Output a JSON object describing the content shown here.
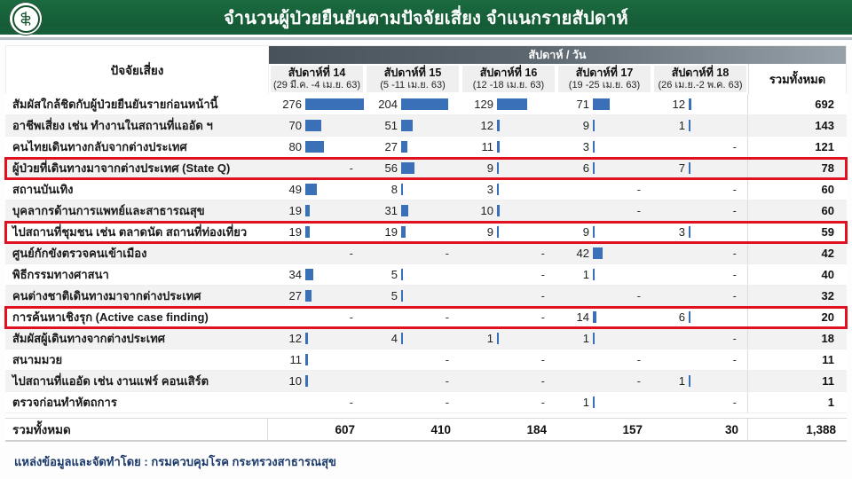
{
  "banner": {
    "title": "จำนวนผู้ป่วยยืนยันตามปัจจัยเสี่ยง จำแนกรายสัปดาห์",
    "logo": "moph-seal-icon",
    "bg_color": "#17603a"
  },
  "table": {
    "corner_header": "ปัจจัยเสี่ยง",
    "group_header": "สัปดาห์ / วัน",
    "total_header": "รวมทั้งหมด",
    "bar_color": "#3a70b8",
    "highlight_color": "#e01220",
    "bar_max_value": 276,
    "weeks": [
      {
        "name": "สัปดาห์ที่ 14",
        "range": "(29 มี.ค. -4 เม.ย. 63)"
      },
      {
        "name": "สัปดาห์ที่ 15",
        "range": "(5 -11 เม.ย. 63)"
      },
      {
        "name": "สัปดาห์ที่ 16",
        "range": "(12 -18 เม.ย. 63)"
      },
      {
        "name": "สัปดาห์ที่ 17",
        "range": "(19 -25 เม.ย. 63)"
      },
      {
        "name": "สัปดาห์ที่ 18",
        "range": "(26 เม.ย.-2 พ.ค. 63)"
      }
    ],
    "rows": [
      {
        "label": "สัมผัสใกล้ชิดกับผู้ป่วยยืนยันรายก่อนหน้านี้",
        "values": [
          276,
          204,
          129,
          71,
          12
        ],
        "total": "692",
        "highlight": false
      },
      {
        "label": "อาชีพเสี่ยง เช่น ทำงานในสถานที่แออัด ฯ",
        "values": [
          70,
          51,
          12,
          9,
          1
        ],
        "total": "143",
        "highlight": false
      },
      {
        "label": "คนไทยเดินทางกลับจากต่างประเทศ",
        "values": [
          80,
          27,
          11,
          3,
          null
        ],
        "total": "121",
        "highlight": false
      },
      {
        "label": "ผู้ป่วยที่เดินทางมาจากต่างประเทศ (State Q)",
        "values": [
          null,
          56,
          9,
          6,
          7
        ],
        "total": "78",
        "highlight": true
      },
      {
        "label": "สถานบันเทิง",
        "values": [
          49,
          8,
          3,
          null,
          null
        ],
        "total": "60",
        "highlight": false
      },
      {
        "label": "บุคลากรด้านการแพทย์และสาธารณสุข",
        "values": [
          19,
          31,
          10,
          null,
          null
        ],
        "total": "60",
        "highlight": false
      },
      {
        "label": "ไปสถานที่ชุมชน เช่น ตลาดนัด สถานที่ท่องเที่ยว",
        "values": [
          19,
          19,
          9,
          9,
          3
        ],
        "total": "59",
        "highlight": true
      },
      {
        "label": "ศูนย์กักขังตรวจคนเข้าเมือง",
        "values": [
          null,
          null,
          null,
          42,
          null
        ],
        "total": "42",
        "highlight": false
      },
      {
        "label": "พิธีกรรมทางศาสนา",
        "values": [
          34,
          5,
          null,
          1,
          null
        ],
        "total": "40",
        "highlight": false
      },
      {
        "label": "คนต่างชาติเดินทางมาจากต่างประเทศ",
        "values": [
          27,
          5,
          null,
          null,
          null
        ],
        "total": "32",
        "highlight": false
      },
      {
        "label": "การค้นหาเชิงรุก (Active case finding)",
        "values": [
          null,
          null,
          null,
          14,
          6
        ],
        "total": "20",
        "highlight": true
      },
      {
        "label": "สัมผัสผู้เดินทางจากต่างประเทศ",
        "values": [
          12,
          4,
          1,
          1,
          null
        ],
        "total": "18",
        "highlight": false
      },
      {
        "label": "สนามมวย",
        "values": [
          11,
          null,
          null,
          null,
          null
        ],
        "total": "11",
        "highlight": false
      },
      {
        "label": "ไปสถานที่แออัด เช่น งานแฟร์ คอนเสิร์ต",
        "values": [
          10,
          null,
          null,
          null,
          1
        ],
        "total": "11",
        "highlight": false
      },
      {
        "label": "ตรวจก่อนทำหัตถการ",
        "values": [
          null,
          null,
          null,
          1,
          null
        ],
        "total": "1",
        "highlight": false
      }
    ],
    "totals": {
      "label": "รวมทั้งหมด",
      "values": [
        "607",
        "410",
        "184",
        "157",
        "30"
      ],
      "grand": "1,388"
    },
    "missing_marker": "-"
  },
  "footer": {
    "source": "แหล่งข้อมูลและจัดทำโดย : กรมควบคุมโรค กระทรวงสาธารณสุข"
  },
  "chart_data": {
    "type": "table",
    "title": "จำนวนผู้ป่วยยืนยันตามปัจจัยเสี่ยง จำแนกรายสัปดาห์",
    "columns": [
      "สัปดาห์ที่ 14 (29 มี.ค. -4 เม.ย. 63)",
      "สัปดาห์ที่ 15 (5 -11 เม.ย. 63)",
      "สัปดาห์ที่ 16 (12 -18 เม.ย. 63)",
      "สัปดาห์ที่ 17 (19 -25 เม.ย. 63)",
      "สัปดาห์ที่ 18 (26 เม.ย.-2 พ.ค. 63)",
      "รวมทั้งหมด"
    ],
    "rows": [
      {
        "label": "สัมผัสใกล้ชิดกับผู้ป่วยยืนยันรายก่อนหน้านี้",
        "values": [
          276,
          204,
          129,
          71,
          12
        ],
        "total": 692
      },
      {
        "label": "อาชีพเสี่ยง เช่น ทำงานในสถานที่แออัด ฯ",
        "values": [
          70,
          51,
          12,
          9,
          1
        ],
        "total": 143
      },
      {
        "label": "คนไทยเดินทางกลับจากต่างประเทศ",
        "values": [
          80,
          27,
          11,
          3,
          null
        ],
        "total": 121
      },
      {
        "label": "ผู้ป่วยที่เดินทางมาจากต่างประเทศ (State Q)",
        "values": [
          null,
          56,
          9,
          6,
          7
        ],
        "total": 78
      },
      {
        "label": "สถานบันเทิง",
        "values": [
          49,
          8,
          3,
          null,
          null
        ],
        "total": 60
      },
      {
        "label": "บุคลากรด้านการแพทย์และสาธารณสุข",
        "values": [
          19,
          31,
          10,
          null,
          null
        ],
        "total": 60
      },
      {
        "label": "ไปสถานที่ชุมชน เช่น ตลาดนัด สถานที่ท่องเที่ยว",
        "values": [
          19,
          19,
          9,
          9,
          3
        ],
        "total": 59
      },
      {
        "label": "ศูนย์กักขังตรวจคนเข้าเมือง",
        "values": [
          null,
          null,
          null,
          42,
          null
        ],
        "total": 42
      },
      {
        "label": "พิธีกรรมทางศาสนา",
        "values": [
          34,
          5,
          null,
          1,
          null
        ],
        "total": 40
      },
      {
        "label": "คนต่างชาติเดินทางมาจากต่างประเทศ",
        "values": [
          27,
          5,
          null,
          null,
          null
        ],
        "total": 32
      },
      {
        "label": "การค้นหาเชิงรุก (Active case finding)",
        "values": [
          null,
          null,
          null,
          14,
          6
        ],
        "total": 20
      },
      {
        "label": "สัมผัสผู้เดินทางจากต่างประเทศ",
        "values": [
          12,
          4,
          1,
          1,
          null
        ],
        "total": 18
      },
      {
        "label": "สนามมวย",
        "values": [
          11,
          null,
          null,
          null,
          null
        ],
        "total": 11
      },
      {
        "label": "ไปสถานที่แออัด เช่น งานแฟร์ คอนเสิร์ต",
        "values": [
          10,
          null,
          null,
          null,
          1
        ],
        "total": 11
      },
      {
        "label": "ตรวจก่อนทำหัตถการ",
        "values": [
          null,
          null,
          null,
          1,
          null
        ],
        "total": 1
      }
    ],
    "column_totals": [
      607,
      410,
      184,
      157,
      30
    ],
    "grand_total": 1388,
    "highlighted_rows": [
      "ผู้ป่วยที่เดินทางมาจากต่างประเทศ (State Q)",
      "ไปสถานที่ชุมชน เช่น ตลาดนัด สถานที่ท่องเที่ยว",
      "การค้นหาเชิงรุก (Active case finding)"
    ],
    "layout_hints": {
      "in_cell_bars": "blue data bars scaled to max value 276",
      "bar_color": "#3a70b8"
    }
  }
}
